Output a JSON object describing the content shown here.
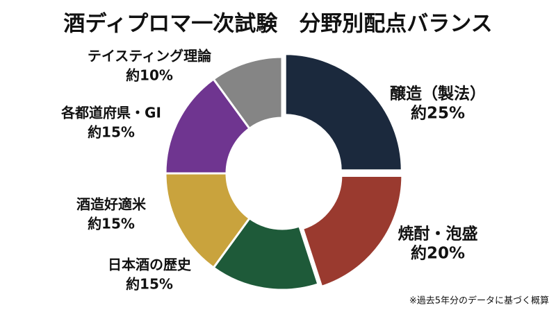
{
  "chart_data": {
    "type": "donut",
    "title": "酒ディプロマ一次試験　分野別配点バランス",
    "categories": [
      "醸造（製法）",
      "焼酎・泡盛",
      "日本酒の歴史",
      "酒造好適米",
      "各都道府県・GI",
      "テイスティング理論"
    ],
    "values": [
      25,
      20,
      15,
      15,
      15,
      10
    ],
    "value_labels": [
      "約25%",
      "約20%",
      "約15%",
      "約15%",
      "約15%",
      "約10%"
    ],
    "colors": [
      "#1b293d",
      "#9a3a2f",
      "#1e5a39",
      "#c9a33d",
      "#6f3590",
      "#858585"
    ],
    "note": "※過去5年分のデータに基づく概算"
  }
}
